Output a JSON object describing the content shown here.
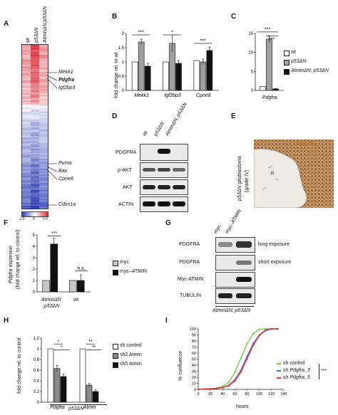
{
  "A": {
    "letter": "A",
    "col_labels": [
      "wt",
      "p53ΔN",
      "AtminΔN;p53ΔN"
    ],
    "genes": [
      "Mekk1",
      "Pdgfra",
      "Igf2bp3",
      "Puma",
      "Bax",
      "Cpne8",
      "Cdkn1a"
    ],
    "scale": [
      "-1.5",
      "0",
      "1.5"
    ],
    "colors": {
      "high": "#d9333f",
      "low": "#2f3fb5",
      "mid": "#ffffff"
    }
  },
  "B": {
    "letter": "B",
    "ylabel": "fold change rel. to wt",
    "sig": [
      "***",
      "*",
      "***"
    ],
    "chart_data": {
      "type": "bar",
      "categories": [
        "Mekk1",
        "Igf2bp3",
        "Cpne8"
      ],
      "series": [
        {
          "name": "wt",
          "values": [
            1.0,
            1.0,
            1.05
          ]
        },
        {
          "name": "p53ΔN",
          "values": [
            1.7,
            1.65,
            1.0
          ]
        },
        {
          "name": "AtminΔN;p53ΔN",
          "values": [
            0.85,
            0.95,
            1.4
          ]
        }
      ],
      "errors": [
        [
          0.0,
          0.0,
          0.0
        ],
        [
          0.1,
          0.3,
          0.1
        ],
        [
          0.1,
          0.1,
          0.12
        ]
      ],
      "yticks": [
        "0",
        "0.5",
        "1",
        "1.5",
        "2"
      ],
      "ylim": [
        0,
        2
      ]
    }
  },
  "C": {
    "letter": "C",
    "sig": [
      "***",
      "***"
    ],
    "xlabel": "Pdgfra",
    "legend": [
      "wt",
      "p53ΔN",
      "AtminΔN; p53ΔN"
    ],
    "chart_data": {
      "type": "bar",
      "categories": [
        "Pdgfra"
      ],
      "series": [
        {
          "name": "wt",
          "values": [
            1.0
          ]
        },
        {
          "name": "p53ΔN",
          "values": [
            13.5
          ]
        },
        {
          "name": "AtminΔN;p53ΔN",
          "values": [
            0.4
          ]
        }
      ],
      "errors": [
        [
          0.0
        ],
        [
          0.9
        ],
        [
          0.1
        ]
      ],
      "yticks": [
        "0",
        "5",
        "10",
        "15"
      ],
      "ylim": [
        0,
        15
      ]
    }
  },
  "D": {
    "letter": "D",
    "col_labels": [
      "wt",
      "p53ΔN",
      "AtminΔN; p53ΔN"
    ],
    "rows": [
      "PDGFRA",
      "p-AKT",
      "AKT",
      "ACTIN"
    ]
  },
  "E": {
    "letter": "E",
    "stain": "PDGFRa",
    "ylabel1": "p53ΔN glioblastoma",
    "ylabel2": "(grade IV)",
    "mark": "N"
  },
  "F": {
    "letter": "F",
    "ylabel1": "Pdgfra expresion",
    "ylabel2": "(fold change rel. to control)",
    "sig": [
      "***",
      "n.s."
    ],
    "group_labels": [
      "AtminΔN",
      ";p53ΔN",
      "wt"
    ],
    "legend": [
      "myc",
      "myc–ATMIN"
    ],
    "chart_data": {
      "type": "bar",
      "categories": [
        "AtminΔN;p53ΔN",
        "wt"
      ],
      "series": [
        {
          "name": "myc",
          "values": [
            1.0,
            1.0
          ]
        },
        {
          "name": "myc–ATMIN",
          "values": [
            4.2,
            1.0
          ]
        }
      ],
      "errors": [
        [
          0.0,
          0.0
        ],
        [
          0.5,
          0.5
        ]
      ],
      "yticks": [
        "0",
        "1",
        "2",
        "3",
        "4",
        "5"
      ],
      "ylim": [
        0,
        5
      ]
    }
  },
  "G": {
    "letter": "G",
    "col_labels": [
      "myc",
      "myc–ATMIN"
    ],
    "rows": [
      "PDGFRA",
      "PDGFRA",
      "Myc-ATMIN",
      "TUBULIN"
    ],
    "notes": [
      "long exposure",
      "short exposure"
    ],
    "footer": "AtminΔN; p53ΔN"
  },
  "H": {
    "letter": "H",
    "ylabel": "fold change rel. to control",
    "sig": [
      "*",
      "*",
      "**",
      "**"
    ],
    "footer": "p53ΔN",
    "legend": [
      "sh control",
      "sh2 Atmin",
      "sh5 Atmin"
    ],
    "chart_data": {
      "type": "bar",
      "categories": [
        "Pdgfra",
        "Atmin"
      ],
      "series": [
        {
          "name": "sh control",
          "values": [
            1.0,
            1.0
          ]
        },
        {
          "name": "sh2 Atmin",
          "values": [
            0.63,
            0.32
          ]
        },
        {
          "name": "sh5 Atmin",
          "values": [
            0.48,
            0.2
          ]
        }
      ],
      "errors": [
        [
          0.0,
          0.0
        ],
        [
          0.06,
          0.03
        ],
        [
          0.05,
          0.03
        ]
      ],
      "yticks": [
        "0",
        "0.2",
        "0.4",
        "0.6",
        "0.8",
        "1",
        "1.2"
      ],
      "ylim": [
        0,
        1.2
      ]
    }
  },
  "I": {
    "letter": "I",
    "ylabel": "% confluence",
    "xlabel": "hours",
    "sig": "***",
    "legend": [
      "sh control",
      "sh Pdgfra_3",
      "sh Pdgfra_5"
    ],
    "legend_colors": [
      "#7dc242",
      "#4a78c8",
      "#e8322f"
    ],
    "chart_data": {
      "type": "line",
      "x": [
        0,
        10,
        20,
        30,
        40,
        50,
        60,
        70,
        80,
        90,
        100,
        110,
        120,
        130
      ],
      "series": [
        {
          "name": "sh control",
          "values": [
            0,
            0.5,
            1,
            2,
            5,
            12,
            28,
            52,
            76,
            92,
            99,
            100,
            100,
            100
          ]
        },
        {
          "name": "sh Pdgfra_3",
          "values": [
            0,
            0.5,
            1,
            1.5,
            3,
            7,
            16,
            32,
            55,
            76,
            90,
            98,
            100,
            100
          ]
        },
        {
          "name": "sh Pdgfra_5",
          "values": [
            0,
            0.5,
            1,
            1.5,
            3,
            6,
            14,
            29,
            51,
            73,
            89,
            97,
            100,
            100
          ]
        }
      ],
      "xticks": [
        "0",
        "20",
        "40",
        "60",
        "80",
        "100",
        "120",
        "140"
      ],
      "yticks": [
        "0",
        "10",
        "20",
        "30",
        "40",
        "50",
        "60",
        "70",
        "80",
        "90",
        "100"
      ],
      "xlim": [
        0,
        140
      ],
      "ylim": [
        0,
        100
      ]
    }
  }
}
